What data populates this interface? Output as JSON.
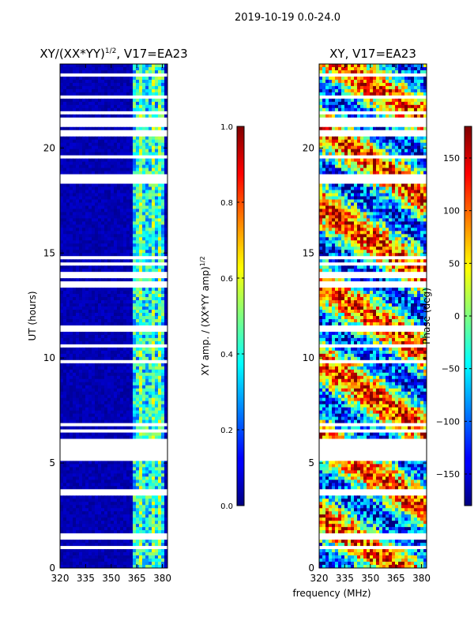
{
  "suptitle": "2019-10-19 0.0-24.0",
  "xlabel": "frequency (MHz)",
  "chart_data": [
    {
      "type": "heatmap",
      "title_main": "XY/(XX*YY)",
      "title_sup": "1/2",
      "title_tail": ", V17=EA23",
      "ylabel": "UT (hours)",
      "xlim": [
        320,
        383
      ],
      "ylim": [
        0,
        24
      ],
      "xticks": [
        320,
        335,
        350,
        365,
        380
      ],
      "xtick_labels": [
        "320",
        "335",
        "350",
        "365",
        "380"
      ],
      "yticks": [
        0,
        5,
        10,
        15,
        20
      ],
      "ytick_labels": [
        "0",
        "5",
        "10",
        "15",
        "20"
      ],
      "colormap": "jet",
      "colorbar": {
        "label_main": "XY amp. / (XX*YY amp)",
        "label_sup": "1/2",
        "range": [
          0.0,
          1.0
        ],
        "ticks": [
          0.0,
          0.2,
          0.4,
          0.6,
          0.8,
          1.0
        ],
        "tick_labels": [
          "0.0",
          "0.2",
          "0.4",
          "0.6",
          "0.8",
          "1.0"
        ]
      }
    },
    {
      "type": "heatmap",
      "title_main": "XY, V17=EA23",
      "ylabel": "",
      "xlim": [
        320,
        383
      ],
      "ylim": [
        0,
        24
      ],
      "xticks": [
        320,
        335,
        350,
        365,
        380
      ],
      "xtick_labels": [
        "320",
        "335",
        "350",
        "365",
        "380"
      ],
      "yticks": [
        0,
        5,
        10,
        15,
        20
      ],
      "ytick_labels": [
        "0",
        "5",
        "10",
        "15",
        "20"
      ],
      "colormap": "jet",
      "colorbar": {
        "label_main": "Phase (deg)",
        "range": [
          -180,
          180
        ],
        "ticks": [
          -150,
          -100,
          -50,
          0,
          50,
          100,
          150
        ],
        "tick_labels": [
          "−150",
          "−100",
          "−50",
          "0",
          "50",
          "100",
          "150"
        ]
      }
    }
  ],
  "colors": {
    "jet_low": "#00007f",
    "jet_high": "#7f0000",
    "flagged": "#ffffff",
    "axis": "#000000"
  }
}
